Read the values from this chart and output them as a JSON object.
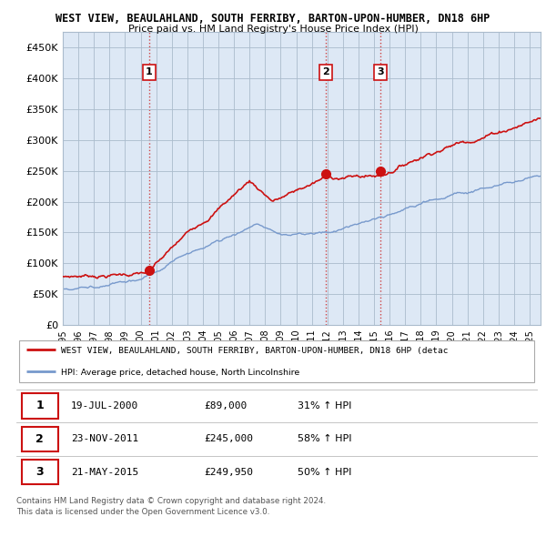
{
  "title1": "WEST VIEW, BEAULAHLAND, SOUTH FERRIBY, BARTON-UPON-HUMBER, DN18 6HP",
  "title2": "Price paid vs. HM Land Registry's House Price Index (HPI)",
  "yticks": [
    0,
    50000,
    100000,
    150000,
    200000,
    250000,
    300000,
    350000,
    400000,
    450000
  ],
  "ytick_labels": [
    "£0",
    "£50K",
    "£100K",
    "£150K",
    "£200K",
    "£250K",
    "£300K",
    "£350K",
    "£400K",
    "£450K"
  ],
  "xlim_start": 1995.0,
  "xlim_end": 2025.7,
  "ylim_min": 0,
  "ylim_max": 475000,
  "sale_dates": [
    2000.54,
    2011.9,
    2015.39
  ],
  "sale_prices": [
    89000,
    245000,
    249950
  ],
  "sale_labels": [
    "1",
    "2",
    "3"
  ],
  "hpi_line_color": "#7799cc",
  "price_line_color": "#cc1111",
  "vline_color": "#cc3333",
  "chart_bg_color": "#dde8f5",
  "legend_label_price": "WEST VIEW, BEAULAHLAND, SOUTH FERRIBY, BARTON-UPON-HUMBER, DN18 6HP (detac",
  "legend_label_hpi": "HPI: Average price, detached house, North Lincolnshire",
  "table_rows": [
    [
      "1",
      "19-JUL-2000",
      "£89,000",
      "31% ↑ HPI"
    ],
    [
      "2",
      "23-NOV-2011",
      "£245,000",
      "58% ↑ HPI"
    ],
    [
      "3",
      "21-MAY-2015",
      "£249,950",
      "50% ↑ HPI"
    ]
  ],
  "footnote": "Contains HM Land Registry data © Crown copyright and database right 2024.\nThis data is licensed under the Open Government Licence v3.0.",
  "grid_color": "#aabbcc",
  "xtick_years": [
    1995,
    1996,
    1997,
    1998,
    1999,
    2000,
    2001,
    2002,
    2003,
    2004,
    2005,
    2006,
    2007,
    2008,
    2009,
    2010,
    2011,
    2012,
    2013,
    2014,
    2015,
    2016,
    2017,
    2018,
    2019,
    2020,
    2021,
    2022,
    2023,
    2024,
    2025
  ]
}
